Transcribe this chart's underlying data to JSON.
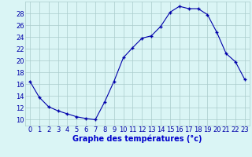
{
  "hours": [
    0,
    1,
    2,
    3,
    4,
    5,
    6,
    7,
    8,
    9,
    10,
    11,
    12,
    13,
    14,
    15,
    16,
    17,
    18,
    19,
    20,
    21,
    22,
    23
  ],
  "temperatures": [
    16.5,
    13.8,
    12.2,
    11.5,
    11.0,
    10.5,
    10.2,
    10.0,
    13.0,
    16.5,
    20.5,
    22.2,
    23.8,
    24.2,
    25.8,
    28.2,
    29.2,
    28.8,
    28.8,
    27.8,
    24.8,
    21.2,
    19.8,
    16.8
  ],
  "line_color": "#0000aa",
  "marker": "+",
  "marker_size": 3.0,
  "bg_color": "#daf5f5",
  "grid_color": "#aacccc",
  "xlabel": "Graphe des températures (°c)",
  "xlabel_color": "#0000cc",
  "xlabel_fontsize": 7,
  "tick_color": "#0000aa",
  "tick_fontsize": 6,
  "ylim": [
    9,
    30
  ],
  "yticks": [
    10,
    12,
    14,
    16,
    18,
    20,
    22,
    24,
    26,
    28
  ],
  "xlim": [
    -0.5,
    23.5
  ],
  "xticks": [
    0,
    1,
    2,
    3,
    4,
    5,
    6,
    7,
    8,
    9,
    10,
    11,
    12,
    13,
    14,
    15,
    16,
    17,
    18,
    19,
    20,
    21,
    22,
    23
  ]
}
